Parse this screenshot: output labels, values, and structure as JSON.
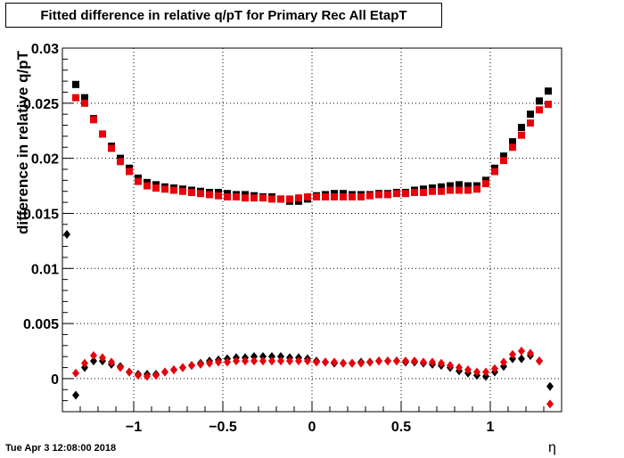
{
  "title": "Fitted difference in relative q/pT for Primary Rec All EtapT",
  "ylabel": "difference in relative q/pT",
  "xlabel": "η",
  "timestamp": "Tue Apr  3 12:08:00 2018",
  "colors": {
    "black_series": "#000000",
    "red_series": "#e8000b",
    "grid": "#000000"
  },
  "chart_data": {
    "type": "scatter",
    "title": "Fitted difference in relative q/pT for Primary Rec All EtapT",
    "xlabel": "η",
    "ylabel": "difference in relative q/pT",
    "xlim": [
      -1.4,
      1.4
    ],
    "ylim": [
      -0.003,
      0.03
    ],
    "x_ticks": [
      -1,
      -0.5,
      0,
      0.5,
      1
    ],
    "x_tick_labels": [
      "−1",
      "−0.5",
      "0",
      "0.5",
      "1"
    ],
    "y_ticks": [
      0,
      0.005,
      0.01,
      0.015,
      0.02,
      0.025,
      0.03
    ],
    "y_tick_labels": [
      "0",
      "0.005",
      "0.01",
      "0.015",
      "0.02",
      "0.025",
      "0.03"
    ],
    "grid": true,
    "series": [
      {
        "marker": "square",
        "color": "#000000",
        "x": [
          -1.325,
          -1.275,
          -1.225,
          -1.175,
          -1.125,
          -1.075,
          -1.025,
          -0.975,
          -0.925,
          -0.875,
          -0.825,
          -0.775,
          -0.725,
          -0.675,
          -0.625,
          -0.575,
          -0.525,
          -0.475,
          -0.425,
          -0.375,
          -0.325,
          -0.275,
          -0.225,
          -0.175,
          -0.125,
          -0.075,
          -0.025,
          0.025,
          0.075,
          0.125,
          0.175,
          0.225,
          0.275,
          0.325,
          0.375,
          0.425,
          0.475,
          0.525,
          0.575,
          0.625,
          0.675,
          0.725,
          0.775,
          0.825,
          0.875,
          0.925,
          0.975,
          1.025,
          1.075,
          1.125,
          1.175,
          1.225,
          1.275,
          1.325
        ],
        "y": [
          0.0267,
          0.0255,
          0.0236,
          0.0222,
          0.0211,
          0.02,
          0.0191,
          0.0182,
          0.0178,
          0.0176,
          0.0174,
          0.0173,
          0.0172,
          0.0171,
          0.017,
          0.0169,
          0.0169,
          0.0168,
          0.0167,
          0.0167,
          0.0166,
          0.0165,
          0.0165,
          0.0163,
          0.0161,
          0.0161,
          0.0163,
          0.0166,
          0.0167,
          0.0168,
          0.0168,
          0.0167,
          0.0167,
          0.0167,
          0.0168,
          0.0168,
          0.0169,
          0.0169,
          0.0171,
          0.0172,
          0.0173,
          0.0174,
          0.0175,
          0.0176,
          0.0175,
          0.0175,
          0.018,
          0.0191,
          0.0202,
          0.0215,
          0.0228,
          0.024,
          0.0252,
          0.0261
        ]
      },
      {
        "marker": "square",
        "color": "#e8000b",
        "x": [
          -1.325,
          -1.275,
          -1.225,
          -1.175,
          -1.125,
          -1.075,
          -1.025,
          -0.975,
          -0.925,
          -0.875,
          -0.825,
          -0.775,
          -0.725,
          -0.675,
          -0.625,
          -0.575,
          -0.525,
          -0.475,
          -0.425,
          -0.375,
          -0.325,
          -0.275,
          -0.225,
          -0.175,
          -0.125,
          -0.075,
          -0.025,
          0.025,
          0.075,
          0.125,
          0.175,
          0.225,
          0.275,
          0.325,
          0.375,
          0.425,
          0.475,
          0.525,
          0.575,
          0.625,
          0.675,
          0.725,
          0.775,
          0.825,
          0.875,
          0.925,
          0.975,
          1.025,
          1.075,
          1.125,
          1.175,
          1.225,
          1.275,
          1.325
        ],
        "y": [
          0.0255,
          0.025,
          0.0235,
          0.0222,
          0.0209,
          0.0197,
          0.0188,
          0.0179,
          0.0175,
          0.0173,
          0.0172,
          0.0171,
          0.017,
          0.0169,
          0.0168,
          0.0167,
          0.0166,
          0.0165,
          0.0165,
          0.0164,
          0.0164,
          0.0164,
          0.0163,
          0.0163,
          0.0163,
          0.0164,
          0.0165,
          0.0165,
          0.0165,
          0.0165,
          0.0165,
          0.0165,
          0.0165,
          0.0166,
          0.0167,
          0.0167,
          0.0168,
          0.0168,
          0.0169,
          0.0169,
          0.017,
          0.017,
          0.0171,
          0.0171,
          0.0171,
          0.0172,
          0.0177,
          0.0188,
          0.0198,
          0.021,
          0.0221,
          0.0232,
          0.0244,
          0.0249
        ]
      },
      {
        "marker": "diamond",
        "color": "#000000",
        "x": [
          -1.375,
          -1.325,
          -1.275,
          -1.225,
          -1.175,
          -1.125,
          -1.075,
          -1.025,
          -0.975,
          -0.925,
          -0.875,
          -0.825,
          -0.775,
          -0.725,
          -0.675,
          -0.625,
          -0.575,
          -0.525,
          -0.475,
          -0.425,
          -0.375,
          -0.325,
          -0.275,
          -0.225,
          -0.175,
          -0.125,
          -0.075,
          -0.025,
          0.025,
          0.075,
          0.125,
          0.175,
          0.225,
          0.275,
          0.325,
          0.375,
          0.425,
          0.475,
          0.525,
          0.575,
          0.625,
          0.675,
          0.725,
          0.775,
          0.825,
          0.875,
          0.925,
          0.975,
          1.025,
          1.075,
          1.125,
          1.175,
          1.225,
          1.275,
          1.335
        ],
        "y": [
          0.0131,
          -0.0015,
          0.001,
          0.0016,
          0.0016,
          0.0013,
          0.0011,
          0.0006,
          0.0004,
          0.0004,
          0.0004,
          0.0006,
          0.0008,
          0.001,
          0.0012,
          0.0014,
          0.0016,
          0.0017,
          0.0018,
          0.0019,
          0.0019,
          0.002,
          0.002,
          0.002,
          0.002,
          0.0019,
          0.0019,
          0.0018,
          0.0016,
          0.0015,
          0.0014,
          0.0014,
          0.0014,
          0.0015,
          0.0015,
          0.0016,
          0.0016,
          0.0016,
          0.0015,
          0.0015,
          0.0014,
          0.0013,
          0.0012,
          0.001,
          0.0007,
          0.0005,
          0.0003,
          0.0002,
          0.0006,
          0.0011,
          0.0018,
          0.0018,
          0.0021,
          0.0016,
          -0.0007
        ]
      },
      {
        "marker": "diamond",
        "color": "#e8000b",
        "x": [
          -1.325,
          -1.275,
          -1.225,
          -1.175,
          -1.125,
          -1.075,
          -1.025,
          -0.975,
          -0.925,
          -0.875,
          -0.825,
          -0.775,
          -0.725,
          -0.675,
          -0.625,
          -0.575,
          -0.525,
          -0.475,
          -0.425,
          -0.375,
          -0.325,
          -0.275,
          -0.225,
          -0.175,
          -0.125,
          -0.075,
          -0.025,
          0.025,
          0.075,
          0.125,
          0.175,
          0.225,
          0.275,
          0.325,
          0.375,
          0.425,
          0.475,
          0.525,
          0.575,
          0.625,
          0.675,
          0.725,
          0.775,
          0.825,
          0.875,
          0.925,
          0.975,
          1.025,
          1.075,
          1.125,
          1.175,
          1.225,
          1.275,
          1.335
        ],
        "y": [
          0.0005,
          0.0014,
          0.0021,
          0.0019,
          0.0015,
          0.001,
          0.0006,
          0.0003,
          0.0002,
          0.0003,
          0.0006,
          0.0008,
          0.001,
          0.0012,
          0.0013,
          0.0014,
          0.0015,
          0.0015,
          0.0016,
          0.0016,
          0.0016,
          0.0016,
          0.0016,
          0.0016,
          0.0016,
          0.0016,
          0.0016,
          0.0015,
          0.0015,
          0.0015,
          0.0014,
          0.0014,
          0.0014,
          0.0015,
          0.0016,
          0.0016,
          0.0016,
          0.0016,
          0.0016,
          0.0015,
          0.0015,
          0.0014,
          0.0012,
          0.001,
          0.0008,
          0.0006,
          0.0006,
          0.0009,
          0.0015,
          0.0022,
          0.0025,
          0.0023,
          0.0016,
          -0.0023
        ]
      }
    ]
  }
}
